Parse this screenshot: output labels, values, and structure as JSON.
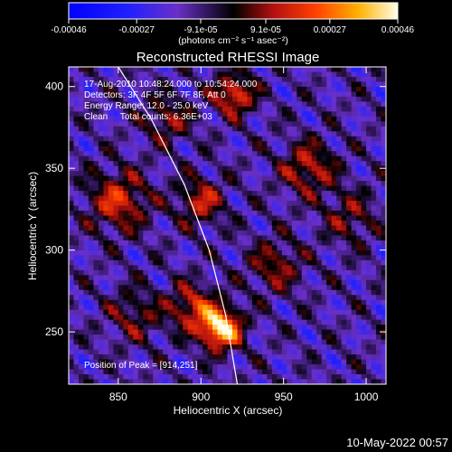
{
  "chart_data": {
    "type": "heatmap",
    "title": "Reconstructed RHESSI Image",
    "xlabel": "Heliocentric X (arcsec)",
    "ylabel": "Heliocentric Y (arcsec)",
    "xlim": [
      820,
      1012
    ],
    "ylim": [
      218,
      412
    ],
    "x_ticks": [
      850,
      900,
      950,
      1000
    ],
    "y_ticks": [
      250,
      300,
      350,
      400
    ],
    "colorbar": {
      "range": [
        -0.00046,
        0.00046
      ],
      "tick_values": [
        -0.00046,
        -0.00027,
        -9.1e-05,
        9.1e-05,
        0.00027,
        0.00046
      ],
      "tick_labels": [
        "-0.00046",
        "-0.00027",
        "-9.1e-05",
        "9.1e-05",
        "0.00027",
        "0.00046"
      ],
      "label": "(photons cm⁻² s⁻¹ asec⁻²)"
    },
    "annotations": [
      "17-Aug-2010 10:48:24.000 to 10:54:24.000",
      "Detectors: 3F 4F 5F 6F 7F 8F, Att 0",
      "Energy Range: 12.0 - 25.0 keV",
      "Clean     Total counts: 6.36E+03"
    ],
    "peak_label": "Position of Peak = [914,251]",
    "peak": [
      914,
      251
    ],
    "limb_line": [
      [
        850,
        412
      ],
      [
        870,
        380
      ],
      [
        890,
        340
      ],
      [
        905,
        300
      ],
      [
        915,
        260
      ],
      [
        922,
        218
      ]
    ],
    "sources": [
      {
        "x": 912,
        "y": 252,
        "amp": 1.0,
        "r": 12
      },
      {
        "x": 895,
        "y": 265,
        "amp": 0.5,
        "r": 14
      },
      {
        "x": 900,
        "y": 330,
        "amp": 0.45,
        "r": 14
      },
      {
        "x": 920,
        "y": 395,
        "amp": 0.6,
        "r": 12
      },
      {
        "x": 850,
        "y": 330,
        "amp": 0.5,
        "r": 18
      },
      {
        "x": 965,
        "y": 350,
        "amp": 0.45,
        "r": 16
      },
      {
        "x": 945,
        "y": 290,
        "amp": 0.35,
        "r": 16
      },
      {
        "x": 880,
        "y": 380,
        "amp": 0.35,
        "r": 14
      },
      {
        "x": 990,
        "y": 320,
        "amp": 0.3,
        "r": 16
      },
      {
        "x": 860,
        "y": 260,
        "amp": 0.3,
        "r": 16
      }
    ]
  },
  "footer": {
    "date": "10-May-2022 00:57"
  }
}
